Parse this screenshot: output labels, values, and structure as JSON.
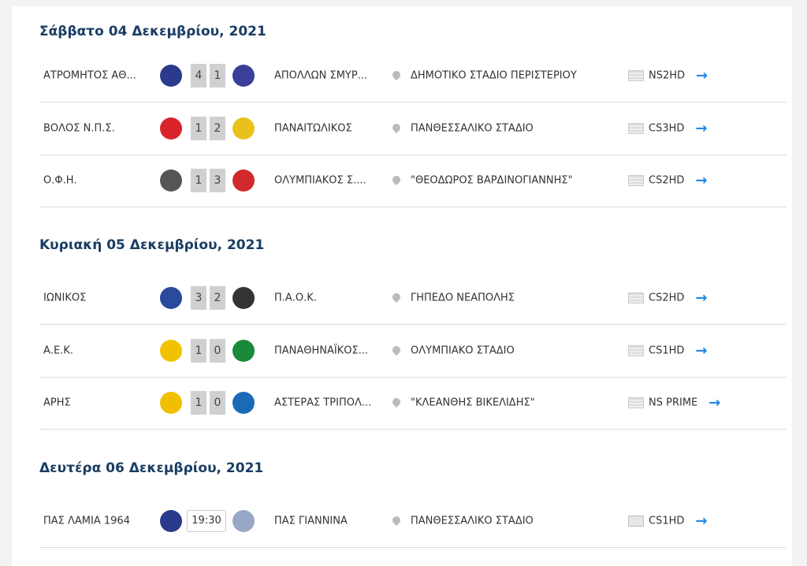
{
  "days": [
    {
      "title": "Σάββατο 04 Δεκεμβρίου, 2021",
      "matches": [
        {
          "home": "ΑΤΡΟΜΗΤΟΣ ΑΘ...",
          "away": "ΑΠΟΛΛΩΝ ΣΜΥΡ...",
          "home_score": "4",
          "away_score": "1",
          "venue": "ΔΗΜΟΤΙΚΟ ΣΤΑΔΙΟ ΠΕΡΙΣΤΕΡΙΟΥ",
          "channel": "NS2HD",
          "home_color": "#2a3a8c",
          "away_color": "#3b3f9a"
        },
        {
          "home": "ΒΟΛΟΣ Ν.Π.Σ.",
          "away": "ΠΑΝΑΙΤΩΛΙΚΟΣ",
          "home_score": "1",
          "away_score": "2",
          "venue": "ΠΑΝΘΕΣΣΑΛΙΚΟ ΣΤΑΔΙΟ",
          "channel": "CS3HD",
          "home_color": "#d8232a",
          "away_color": "#e8c21a"
        },
        {
          "home": "Ο.Φ.Η.",
          "away": "ΟΛΥΜΠΙΑΚΟΣ Σ....",
          "home_score": "1",
          "away_score": "3",
          "venue": "\"ΘΕΟΔΩΡΟΣ ΒΑΡΔΙΝΟΓΙΑΝΝΗΣ\"",
          "channel": "CS2HD",
          "home_color": "#555555",
          "away_color": "#d22a2a"
        }
      ]
    },
    {
      "title": "Κυριακή 05 Δεκεμβρίου, 2021",
      "matches": [
        {
          "home": "ΙΩΝΙΚΟΣ",
          "away": "Π.Α.Ο.Κ.",
          "home_score": "3",
          "away_score": "2",
          "venue": "ΓΗΠΕΔΟ ΝΕΑΠΟΛΗΣ",
          "channel": "CS2HD",
          "home_color": "#2a4a9c",
          "away_color": "#333333"
        },
        {
          "home": "Α.Ε.Κ.",
          "away": "ΠΑΝΑΘΗΝΑΪΚΟΣ...",
          "home_score": "1",
          "away_score": "0",
          "venue": "ΟΛΥΜΠΙΑΚΟ ΣΤΑΔΙΟ",
          "channel": "CS1HD",
          "home_color": "#f2c200",
          "away_color": "#1a8a3a"
        },
        {
          "home": "ΑΡΗΣ",
          "away": "ΑΣΤΕΡΑΣ ΤΡΙΠΟΛ...",
          "home_score": "1",
          "away_score": "0",
          "venue": "\"ΚΛΕΑΝΘΗΣ ΒΙΚΕΛΙΔΗΣ\"",
          "channel": "NS PRIME",
          "home_color": "#f0c000",
          "away_color": "#1a6ab8"
        }
      ]
    },
    {
      "title": "Δευτέρα 06 Δεκεμβρίου, 2021",
      "matches": [
        {
          "home": "ΠΑΣ ΛΑΜΙΑ 1964",
          "away": "ΠΑΣ ΓΙΑΝΝΙΝΑ",
          "time": "19:30",
          "venue": "ΠΑΝΘΕΣΣΑΛΙΚΟ ΣΤΑΔΙΟ",
          "channel": "CS1HD",
          "home_color": "#2a3a8c",
          "away_color": "#9aa8c8"
        }
      ]
    }
  ],
  "arrow_icon": "→",
  "accent": "#1e88e5"
}
